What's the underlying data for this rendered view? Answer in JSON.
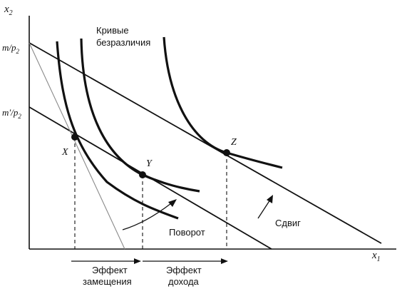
{
  "axes": {
    "x_label": "x",
    "x_sub": "1",
    "y_label": "x",
    "y_sub": "2"
  },
  "intercepts": {
    "m_label_main": "m/p",
    "m_label_sub": "2",
    "mprime_label_main": "m′/p",
    "mprime_label_sub": "2"
  },
  "points": {
    "x": "X",
    "y": "Y",
    "z": "Z"
  },
  "labels": {
    "indifference_line1": "Кривые",
    "indifference_line2": "безразличия",
    "pivot": "Поворот",
    "shift": "Сдвиг",
    "substitution_line1": "Эффект",
    "substitution_line2": "замещения",
    "income_line1": "Эффект",
    "income_line2": "дохода"
  },
  "colors": {
    "ink": "#111111",
    "faint": "#8a8a8a"
  }
}
